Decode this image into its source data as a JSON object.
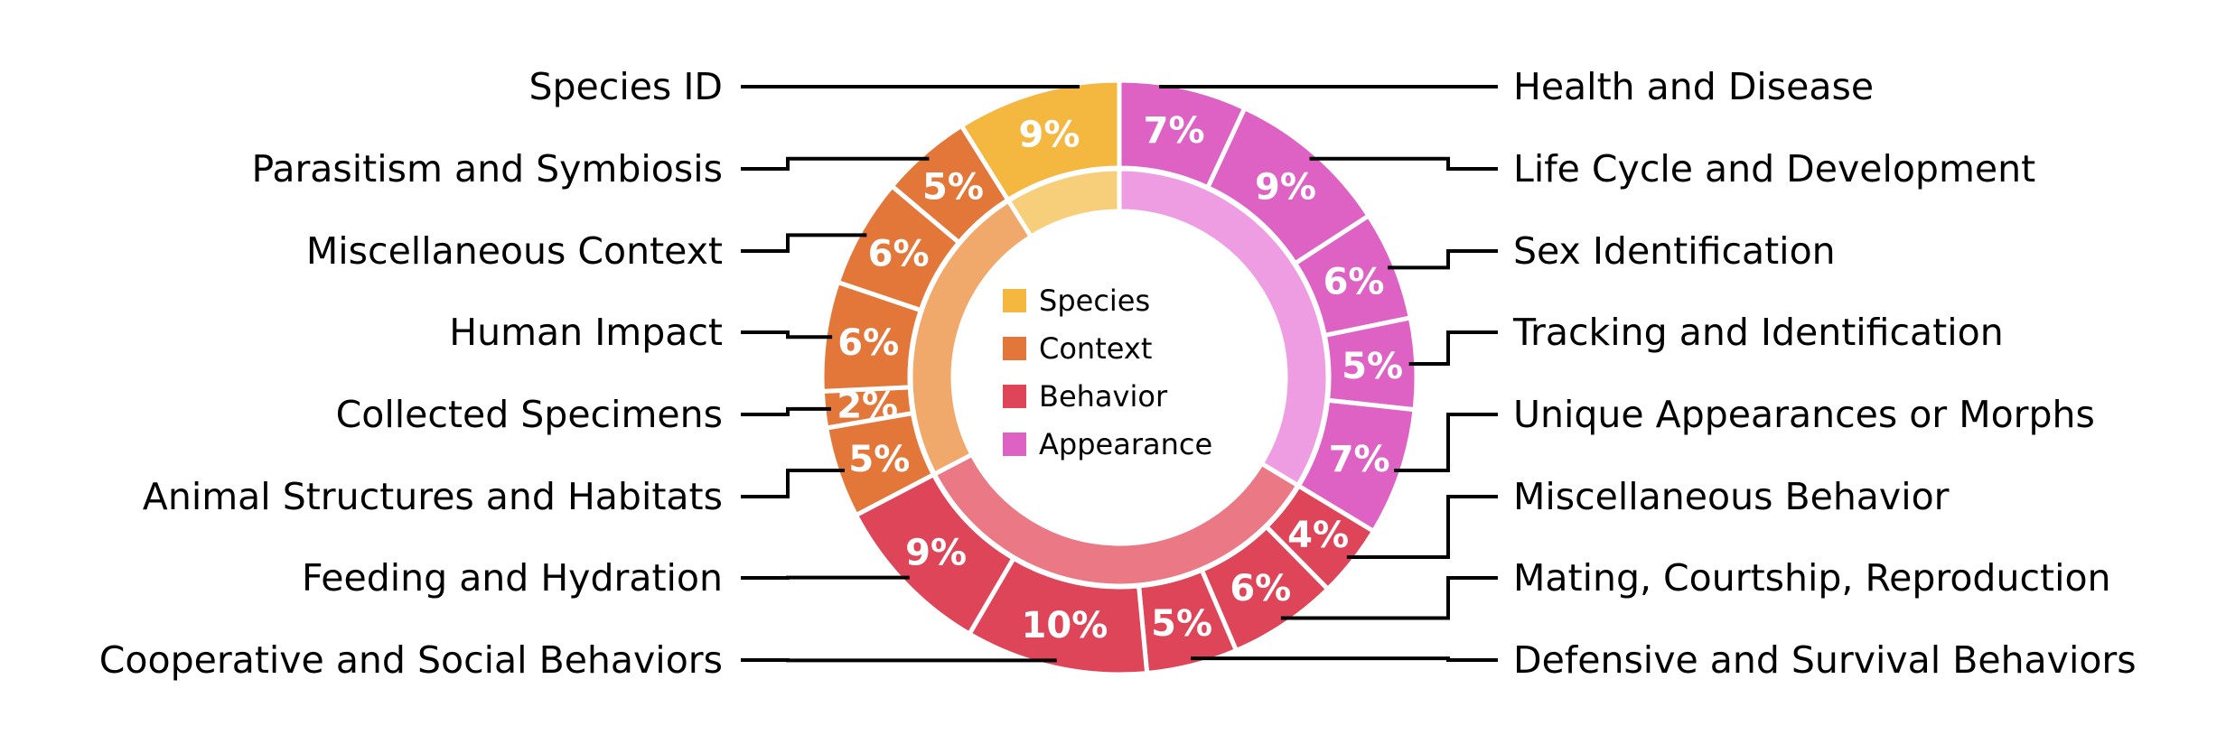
{
  "chart_data": {
    "type": "nested-donut",
    "title": "",
    "legend": {
      "placement": "center",
      "entries": [
        "Species",
        "Context",
        "Behavior",
        "Appearance"
      ]
    },
    "groups": [
      {
        "name": "Appearance",
        "color": "#DE62C4",
        "inner_color": "#EF9DE3"
      },
      {
        "name": "Behavior",
        "color": "#DE4558",
        "inner_color": "#EB7885"
      },
      {
        "name": "Context",
        "color": "#E3773A",
        "inner_color": "#F0A96B"
      },
      {
        "name": "Species",
        "color": "#F4B740",
        "inner_color": "#F7CF7A"
      }
    ],
    "slices": [
      {
        "label": "Health and Disease",
        "group": "Appearance",
        "value": 7,
        "text": "7%",
        "side": "right"
      },
      {
        "label": "Life Cycle and Development",
        "group": "Appearance",
        "value": 9,
        "text": "9%",
        "side": "right"
      },
      {
        "label": "Sex Identification",
        "group": "Appearance",
        "value": 6,
        "text": "6%",
        "side": "right"
      },
      {
        "label": "Tracking and Identification",
        "group": "Appearance",
        "value": 5,
        "text": "5%",
        "side": "right"
      },
      {
        "label": "Unique Appearances or Morphs",
        "group": "Appearance",
        "value": 7,
        "text": "7%",
        "side": "right"
      },
      {
        "label": "Miscellaneous Behavior",
        "group": "Behavior",
        "value": 4,
        "text": "4%",
        "side": "right"
      },
      {
        "label": "Mating, Courtship, Reproduction",
        "group": "Behavior",
        "value": 6,
        "text": "6%",
        "side": "right"
      },
      {
        "label": "Defensive and Survival Behaviors",
        "group": "Behavior",
        "value": 5,
        "text": "5%",
        "side": "right"
      },
      {
        "label": "Cooperative and Social Behaviors",
        "group": "Behavior",
        "value": 10,
        "text": "10%",
        "side": "left"
      },
      {
        "label": "Feeding and Hydration",
        "group": "Behavior",
        "value": 9,
        "text": "9%",
        "side": "left"
      },
      {
        "label": "Animal Structures and Habitats",
        "group": "Context",
        "value": 5,
        "text": "5%",
        "side": "left"
      },
      {
        "label": "Collected Specimens",
        "group": "Context",
        "value": 2,
        "text": "2%",
        "side": "left"
      },
      {
        "label": "Human Impact",
        "group": "Context",
        "value": 6,
        "text": "6%",
        "side": "left"
      },
      {
        "label": "Miscellaneous Context",
        "group": "Context",
        "value": 6,
        "text": "6%",
        "side": "left"
      },
      {
        "label": "Parasitism and Symbiosis",
        "group": "Context",
        "value": 5,
        "text": "5%",
        "side": "left"
      },
      {
        "label": "Species ID",
        "group": "Species",
        "value": 9,
        "text": "9%",
        "side": "left"
      }
    ]
  }
}
